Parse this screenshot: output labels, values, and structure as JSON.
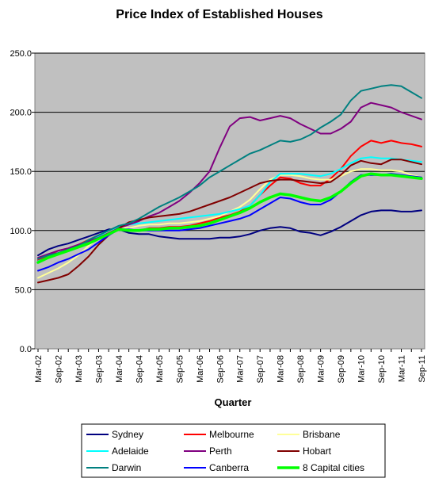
{
  "chart_data": {
    "type": "line",
    "title": "Price Index of Established Houses",
    "xlabel": "Quarter",
    "ylabel": "",
    "ylim": [
      0,
      250
    ],
    "y_ticks": [
      "0.0",
      "50.0",
      "100.0",
      "150.0",
      "200.0",
      "250.0"
    ],
    "y_tick_values": [
      0,
      50,
      100,
      150,
      200,
      250
    ],
    "x_tick_labels": [
      "Mar-02",
      "Sep-02",
      "Mar-03",
      "Sep-03",
      "Mar-04",
      "Sep-04",
      "Mar-05",
      "Sep-05",
      "Mar-06",
      "Sep-06",
      "Mar-07",
      "Sep-07",
      "Mar-08",
      "Sep-08",
      "Mar-09",
      "Sep-09",
      "Mar-10",
      "Sep-10",
      "Mar-11",
      "Sep-11"
    ],
    "categories": [
      "Mar-02",
      "Jun-02",
      "Sep-02",
      "Dec-02",
      "Mar-03",
      "Jun-03",
      "Sep-03",
      "Dec-03",
      "Mar-04",
      "Jun-04",
      "Sep-04",
      "Dec-04",
      "Mar-05",
      "Jun-05",
      "Sep-05",
      "Dec-05",
      "Mar-06",
      "Jun-06",
      "Sep-06",
      "Dec-06",
      "Mar-07",
      "Jun-07",
      "Sep-07",
      "Dec-07",
      "Mar-08",
      "Jun-08",
      "Sep-08",
      "Dec-08",
      "Mar-09",
      "Jun-09",
      "Sep-09",
      "Dec-09",
      "Mar-10",
      "Jun-10",
      "Sep-10",
      "Dec-10",
      "Mar-11",
      "Jun-11",
      "Sep-11"
    ],
    "grid": true,
    "plot_background": "#c0c0c0",
    "legend_placement": "bottom",
    "series": [
      {
        "name": "Sydney",
        "color": "#000080",
        "width": 2,
        "values": [
          79,
          84,
          87,
          89,
          92,
          95,
          98,
          101,
          101,
          98,
          97,
          97,
          95,
          94,
          93,
          93,
          93,
          93,
          94,
          94,
          95,
          97,
          100,
          102,
          103,
          102,
          99,
          98,
          96,
          99,
          103,
          108,
          113,
          116,
          117,
          117,
          116,
          116,
          117
        ]
      },
      {
        "name": "Melbourne",
        "color": "#ff0000",
        "width": 2,
        "values": [
          75,
          79,
          83,
          85,
          88,
          92,
          96,
          99,
          102,
          100,
          100,
          102,
          102,
          103,
          103,
          104,
          106,
          108,
          111,
          113,
          116,
          121,
          130,
          138,
          145,
          144,
          140,
          138,
          138,
          144,
          152,
          163,
          171,
          176,
          174,
          176,
          174,
          173,
          171
        ]
      },
      {
        "name": "Brisbane",
        "color": "#ffff99",
        "width": 2,
        "values": [
          60,
          64,
          68,
          73,
          79,
          87,
          94,
          99,
          103,
          102,
          104,
          105,
          105,
          106,
          106,
          107,
          108,
          110,
          112,
          116,
          120,
          126,
          135,
          143,
          147,
          147,
          146,
          144,
          143,
          143,
          146,
          150,
          152,
          152,
          151,
          151,
          150,
          147,
          145
        ]
      },
      {
        "name": "Adelaide",
        "color": "#00ffff",
        "width": 2,
        "values": [
          74,
          77,
          80,
          83,
          86,
          90,
          95,
          100,
          103,
          105,
          106,
          107,
          108,
          109,
          110,
          111,
          112,
          113,
          114,
          116,
          118,
          121,
          130,
          141,
          148,
          148,
          148,
          147,
          146,
          148,
          152,
          157,
          161,
          162,
          161,
          161,
          160,
          159,
          158
        ]
      },
      {
        "name": "Perth",
        "color": "#800080",
        "width": 2,
        "values": [
          77,
          80,
          83,
          85,
          88,
          91,
          94,
          98,
          102,
          105,
          108,
          112,
          115,
          120,
          125,
          132,
          140,
          150,
          170,
          188,
          195,
          196,
          193,
          195,
          197,
          195,
          190,
          186,
          182,
          182,
          186,
          192,
          204,
          208,
          206,
          204,
          200,
          197,
          194
        ]
      },
      {
        "name": "Hobart",
        "color": "#800000",
        "width": 2,
        "values": [
          56,
          58,
          60,
          63,
          70,
          78,
          88,
          96,
          102,
          107,
          109,
          111,
          112,
          113,
          114,
          116,
          119,
          122,
          125,
          128,
          132,
          136,
          140,
          142,
          143,
          143,
          142,
          141,
          140,
          141,
          147,
          155,
          159,
          157,
          156,
          160,
          160,
          158,
          156
        ]
      },
      {
        "name": "Darwin",
        "color": "#008080",
        "width": 2,
        "values": [
          76,
          79,
          81,
          84,
          87,
          92,
          96,
          100,
          104,
          106,
          110,
          115,
          120,
          124,
          128,
          133,
          138,
          145,
          150,
          155,
          160,
          165,
          168,
          172,
          176,
          175,
          177,
          181,
          187,
          192,
          198,
          210,
          218,
          220,
          222,
          223,
          222,
          217,
          212
        ]
      },
      {
        "name": "Canberra",
        "color": "#0000ff",
        "width": 2,
        "values": [
          66,
          69,
          73,
          76,
          80,
          84,
          90,
          96,
          101,
          101,
          100,
          100,
          100,
          100,
          100,
          101,
          102,
          104,
          106,
          108,
          110,
          113,
          118,
          123,
          128,
          127,
          124,
          122,
          122,
          126,
          133,
          141,
          147,
          147,
          147,
          148,
          147,
          146,
          145
        ]
      },
      {
        "name": "8 Capital cities",
        "color": "#00ff00",
        "width": 3.5,
        "values": [
          73,
          77,
          80,
          83,
          86,
          89,
          93,
          97,
          101,
          100,
          100,
          101,
          101,
          102,
          102,
          103,
          104,
          106,
          109,
          112,
          115,
          119,
          124,
          128,
          131,
          130,
          128,
          126,
          125,
          128,
          133,
          140,
          146,
          148,
          147,
          147,
          146,
          145,
          144
        ]
      }
    ]
  }
}
